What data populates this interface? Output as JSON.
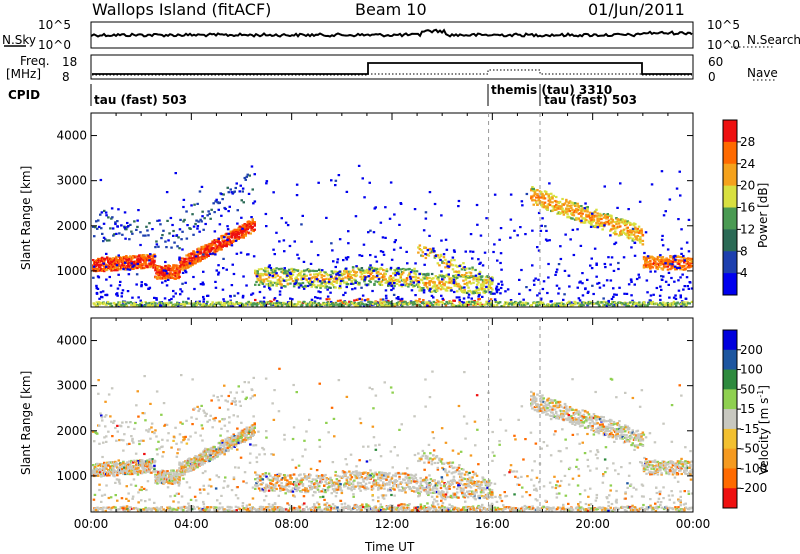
{
  "header": {
    "title": "Wallops Island (fitACF)",
    "beam": "Beam 10",
    "date": "01/Jun/2011"
  },
  "top_panels": {
    "nsky_label": "N.Sky",
    "nsky_ticks": [
      "10^5",
      "10^0"
    ],
    "nsearch_label": "N.Search",
    "nsearch_ticks": [
      "10^5",
      "10^0"
    ],
    "freq_label": "Freq.",
    "freq_unit": "[MHz]",
    "freq_ticks": [
      "18",
      "8"
    ],
    "nave_label": "Nave",
    "nave_ticks": [
      "60",
      "0"
    ],
    "cpid_label": "CPID",
    "cpid_segments": [
      "tau (fast) 503",
      "themis (tau) 3310",
      "tau (fast) 503"
    ]
  },
  "colors": {
    "power": [
      "#0000ee",
      "#1d3fae",
      "#2b6a56",
      "#4a9a52",
      "#d8e040",
      "#f5a21c",
      "#ff6a00",
      "#ee1010"
    ],
    "velocity": [
      "#ee1010",
      "#ff6a00",
      "#f59a20",
      "#f2c030",
      "#c8c8c0",
      "#8fd050",
      "#2e8a3e",
      "#1d56a0",
      "#0000dd"
    ]
  },
  "chart_data": [
    {
      "type": "heatmap",
      "title": "Power",
      "xlabel": "",
      "ylabel": "Slant Range [km]",
      "x_ticks": [
        "00:00",
        "04:00",
        "08:00",
        "12:00",
        "16:00",
        "20:00",
        "00:00"
      ],
      "y_ticks": [
        "1000",
        "2000",
        "3000",
        "4000"
      ],
      "ylim": [
        200,
        4500
      ],
      "colorbar_label": "Power [dB]",
      "colorbar_ticks": [
        "4",
        "8",
        "12",
        "16",
        "20",
        "24",
        "28"
      ]
    },
    {
      "type": "heatmap",
      "title": "Velocity",
      "xlabel": "Time UT",
      "ylabel": "Slant Range [km]",
      "x_ticks": [
        "00:00",
        "04:00",
        "08:00",
        "12:00",
        "16:00",
        "20:00",
        "00:00"
      ],
      "y_ticks": [
        "1000",
        "2000",
        "3000",
        "4000"
      ],
      "ylim": [
        200,
        4500
      ],
      "colorbar_label": "Velocity [m s",
      "colorbar_unit_exp": "-1",
      "colorbar_unit_close": "]",
      "colorbar_ticks": [
        "200",
        "100",
        "50",
        "15",
        "-15",
        "-50",
        "-100",
        "-200"
      ]
    }
  ]
}
